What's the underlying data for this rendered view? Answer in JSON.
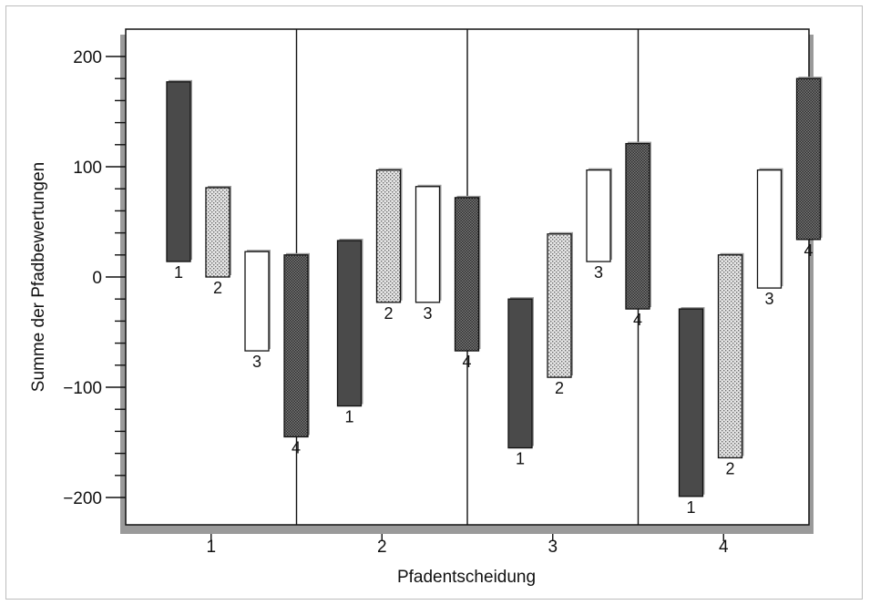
{
  "chart_data": {
    "type": "bar",
    "subtype": "floating-range",
    "xlabel": "Pfadentscheidung",
    "ylabel": "Summe der Pfadbewertungen",
    "ylim": [
      -222,
      228
    ],
    "yticks": [
      200,
      100,
      0,
      -100,
      -200
    ],
    "ytick_labels": [
      "200",
      "100",
      "0",
      "−100",
      "−200"
    ],
    "grid": false,
    "legend": "none",
    "groups": [
      {
        "label": "1",
        "bars": [
          {
            "label": "1",
            "low": 14,
            "high": 177,
            "pattern": "dark"
          },
          {
            "label": "2",
            "low": 0,
            "high": 81,
            "pattern": "dots"
          },
          {
            "label": "3",
            "low": -67,
            "high": 23,
            "pattern": "white"
          },
          {
            "label": "4",
            "low": -145,
            "high": 20,
            "pattern": "hatch"
          }
        ]
      },
      {
        "label": "2",
        "bars": [
          {
            "label": "1",
            "low": -117,
            "high": 33,
            "pattern": "dark"
          },
          {
            "label": "2",
            "low": -23,
            "high": 97,
            "pattern": "dots"
          },
          {
            "label": "3",
            "low": -23,
            "high": 82,
            "pattern": "white"
          },
          {
            "label": "4",
            "low": -67,
            "high": 72,
            "pattern": "hatch"
          }
        ]
      },
      {
        "label": "3",
        "bars": [
          {
            "label": "1",
            "low": -155,
            "high": -20,
            "pattern": "dark"
          },
          {
            "label": "2",
            "low": -91,
            "high": 39,
            "pattern": "dots"
          },
          {
            "label": "3",
            "low": 14,
            "high": 97,
            "pattern": "white"
          },
          {
            "label": "4",
            "low": -29,
            "high": 121,
            "pattern": "hatch"
          }
        ]
      },
      {
        "label": "4",
        "bars": [
          {
            "label": "1",
            "low": -199,
            "high": -29,
            "pattern": "dark"
          },
          {
            "label": "2",
            "low": -164,
            "high": 20,
            "pattern": "dots"
          },
          {
            "label": "3",
            "low": -10,
            "high": 97,
            "pattern": "white"
          },
          {
            "label": "4",
            "low": 34,
            "high": 180,
            "pattern": "hatch"
          }
        ]
      }
    ],
    "colors": {
      "dark": "#4a4a4a",
      "dots_bg": "#e6e6e6",
      "dots_fg": "#6a6a6a",
      "hatch_bg": "#7a7a7a",
      "hatch_fg": "#2e2e2e",
      "white": "#ffffff",
      "shadow": "#9a9a9a"
    }
  }
}
